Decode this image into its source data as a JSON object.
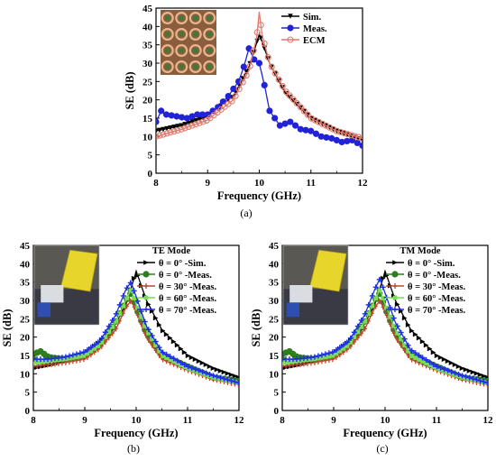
{
  "chart_data": [
    {
      "id": "a",
      "type": "line",
      "caption": "(a)",
      "xlabel": "Frequency (GHz)",
      "ylabel": "SE (dB)",
      "xlim": [
        8,
        12
      ],
      "ylim": [
        0,
        45
      ],
      "xticks": [
        8,
        9,
        10,
        11,
        12
      ],
      "yticks": [
        0,
        5,
        10,
        15,
        20,
        25,
        30,
        35,
        40,
        45
      ],
      "legend_position": "top-right",
      "legend_title": "",
      "inset": "photo of metasurface unit-cell array (top-left)",
      "series": [
        {
          "name": "Sim.",
          "color": "#000000",
          "marker": "triangle-down",
          "x": [
            8,
            8.5,
            9,
            9.5,
            9.8,
            9.95,
            10.0,
            10.05,
            10.2,
            10.5,
            11,
            11.5,
            12
          ],
          "y": [
            11.5,
            13,
            15.5,
            21,
            29,
            35.5,
            38,
            36,
            30,
            22,
            15,
            11.5,
            9
          ]
        },
        {
          "name": "Meas.",
          "color": "#2323d6",
          "marker": "circle",
          "x": [
            8,
            8.1,
            8.2,
            8.4,
            8.6,
            8.8,
            9,
            9.2,
            9.4,
            9.6,
            9.7,
            9.8,
            9.9,
            10.0,
            10.1,
            10.2,
            10.4,
            10.6,
            10.8,
            11,
            11.2,
            11.4,
            11.6,
            11.8,
            12
          ],
          "y": [
            14,
            17,
            16,
            15.5,
            15,
            16,
            16,
            18,
            21,
            25,
            29,
            34,
            31,
            30,
            24,
            17,
            13,
            14,
            12,
            11.5,
            10,
            9.5,
            8.5,
            9,
            7.5
          ]
        },
        {
          "name": "ECM",
          "color": "#e07b6c",
          "marker": "circle-open",
          "x": [
            8,
            8.5,
            9,
            9.5,
            9.8,
            9.95,
            10.0,
            10.05,
            10.2,
            10.5,
            11,
            11.5,
            12
          ],
          "y": [
            10,
            12,
            14.5,
            20,
            28,
            37,
            44,
            38,
            30,
            22.5,
            15,
            11.5,
            9.5
          ]
        }
      ]
    },
    {
      "id": "b",
      "type": "line",
      "caption": "(b)",
      "xlabel": "Frequency (GHz)",
      "ylabel": "SE (dB)",
      "xlim": [
        8,
        12
      ],
      "ylim": [
        0,
        45
      ],
      "xticks": [
        8,
        9,
        10,
        11,
        12
      ],
      "yticks": [
        0,
        5,
        10,
        15,
        20,
        25,
        30,
        35,
        40,
        45
      ],
      "legend_position": "top-right",
      "legend_title": "TE Mode",
      "inset": "photo of measurement setup (top-left)",
      "series": [
        {
          "name": "θ = 0° -Sim.",
          "color": "#000000",
          "marker": "triangle-right",
          "x": [
            8,
            8.5,
            9,
            9.5,
            9.8,
            9.95,
            10.0,
            10.05,
            10.2,
            10.5,
            11,
            11.5,
            12
          ],
          "y": [
            11.5,
            13,
            15.5,
            21,
            29,
            35.5,
            38,
            36,
            30,
            22,
            15,
            11.5,
            9
          ]
        },
        {
          "name": "θ = 0° -Meas.",
          "color": "#2e7d1e",
          "marker": "circle",
          "x": [
            8,
            8.1,
            8.3,
            8.6,
            9,
            9.3,
            9.6,
            9.8,
            9.9,
            10.0,
            10.2,
            10.5,
            11,
            11.5,
            12
          ],
          "y": [
            14,
            16.5,
            14.5,
            14,
            15,
            18,
            24,
            30,
            32,
            28,
            21,
            15,
            12,
            9,
            8
          ]
        },
        {
          "name": "θ = 30° -Meas.",
          "color": "#b8482e",
          "marker": "tick",
          "x": [
            8,
            8.3,
            8.6,
            9,
            9.3,
            9.6,
            9.8,
            9.9,
            10.0,
            10.2,
            10.5,
            11,
            11.5,
            12
          ],
          "y": [
            12,
            12.5,
            13,
            14,
            17,
            22,
            28,
            30,
            27,
            20,
            14,
            11,
            8.5,
            7
          ]
        },
        {
          "name": "θ = 60° -Meas.",
          "color": "#7cdc5a",
          "marker": "square",
          "x": [
            8,
            8.3,
            8.6,
            9,
            9.3,
            9.6,
            9.8,
            9.9,
            10.0,
            10.2,
            10.5,
            11,
            11.5,
            12
          ],
          "y": [
            13,
            13.5,
            14,
            15,
            18,
            24,
            30,
            33,
            29,
            22,
            15,
            11.5,
            9,
            7.5
          ]
        },
        {
          "name": "θ = 70° -Meas.",
          "color": "#1e2ee0",
          "marker": "plus",
          "x": [
            8,
            8.3,
            8.6,
            9,
            9.3,
            9.6,
            9.8,
            9.9,
            10.0,
            10.2,
            10.5,
            11,
            11.5,
            12
          ],
          "y": [
            14,
            14,
            14.5,
            16,
            19,
            26,
            33,
            35,
            31,
            23,
            16,
            12,
            9.5,
            7.5
          ]
        }
      ]
    },
    {
      "id": "c",
      "type": "line",
      "caption": "(c)",
      "xlabel": "Frequency (GHz)",
      "ylabel": "SE (dB)",
      "xlim": [
        8,
        12
      ],
      "ylim": [
        0,
        45
      ],
      "xticks": [
        8,
        9,
        10,
        11,
        12
      ],
      "yticks": [
        0,
        5,
        10,
        15,
        20,
        25,
        30,
        35,
        40,
        45
      ],
      "legend_position": "top-right",
      "legend_title": "TM Mode",
      "inset": "photo of measurement setup (top-left)",
      "series": [
        {
          "name": "θ = 0° -Sim.",
          "color": "#000000",
          "marker": "triangle-right",
          "x": [
            8,
            8.5,
            9,
            9.5,
            9.8,
            9.95,
            10.0,
            10.05,
            10.2,
            10.5,
            11,
            11.5,
            12
          ],
          "y": [
            11.5,
            13,
            15.5,
            21,
            29,
            35.5,
            38,
            36,
            30,
            22,
            15,
            11.5,
            9
          ]
        },
        {
          "name": "θ = 0° -Meas.",
          "color": "#2e7d1e",
          "marker": "circle",
          "x": [
            8,
            8.1,
            8.3,
            8.6,
            9,
            9.3,
            9.6,
            9.8,
            9.9,
            10.0,
            10.2,
            10.5,
            11,
            11.5,
            12
          ],
          "y": [
            14,
            16.5,
            14.5,
            14,
            15,
            18,
            24,
            30,
            32,
            28,
            21,
            15,
            12,
            9,
            8
          ]
        },
        {
          "name": "θ = 30° -Meas.",
          "color": "#b8482e",
          "marker": "tick",
          "x": [
            8,
            8.3,
            8.6,
            9,
            9.3,
            9.6,
            9.8,
            9.9,
            10.0,
            10.2,
            10.5,
            11,
            11.5,
            12
          ],
          "y": [
            12,
            12.5,
            13,
            14,
            17,
            22,
            28,
            30,
            27,
            20,
            14,
            11,
            8.5,
            7
          ]
        },
        {
          "name": "θ = 60° -Meas.",
          "color": "#7cdc5a",
          "marker": "square",
          "x": [
            8,
            8.3,
            8.6,
            9,
            9.3,
            9.6,
            9.8,
            9.9,
            10.0,
            10.2,
            10.5,
            11,
            11.5,
            12
          ],
          "y": [
            13,
            13.5,
            14,
            15,
            18,
            24,
            30,
            33,
            29,
            22,
            15,
            11.5,
            9,
            7.5
          ]
        },
        {
          "name": "θ = 70° -Meas.",
          "color": "#1e2ee0",
          "marker": "plus",
          "x": [
            8,
            8.3,
            8.6,
            9,
            9.3,
            9.6,
            9.8,
            9.9,
            10.0,
            10.2,
            10.5,
            11,
            11.5,
            12
          ],
          "y": [
            14,
            14,
            14.5,
            16,
            19,
            26,
            33,
            36,
            32,
            24,
            16.5,
            12,
            9.5,
            7.5
          ]
        }
      ]
    }
  ]
}
